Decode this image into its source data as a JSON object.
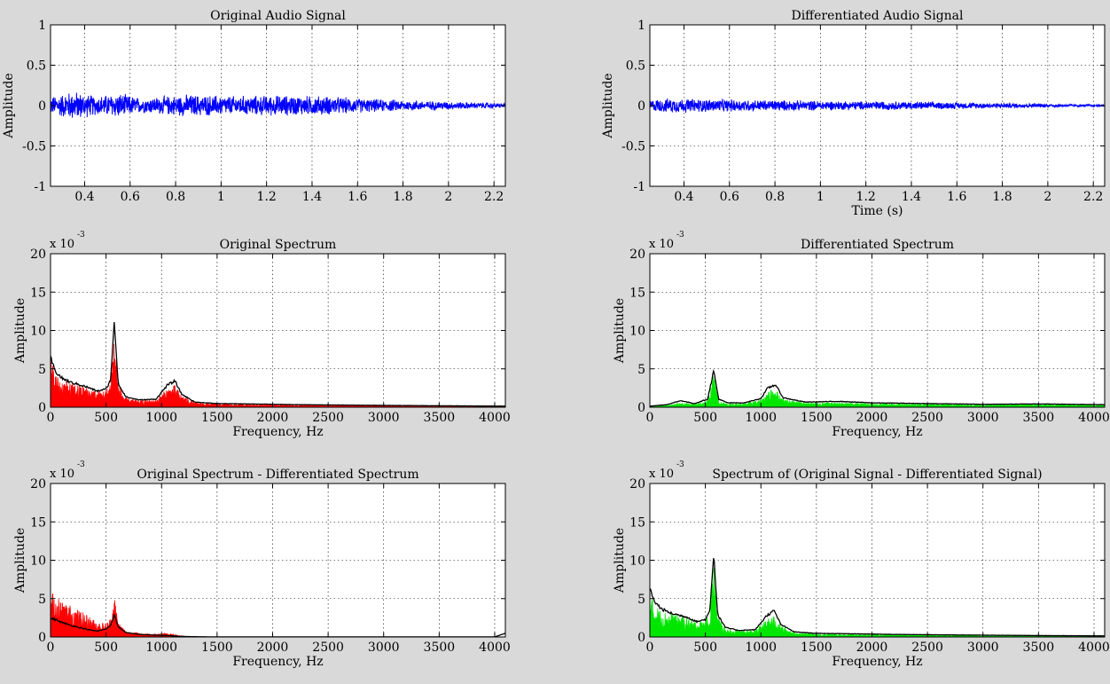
{
  "figure": {
    "background": "#d9d9d9",
    "axes_background": "#ffffff"
  },
  "chart_data": [
    {
      "id": "original-audio",
      "type": "line",
      "title": "Original Audio Signal",
      "xlabel": "",
      "ylabel": "Amplitude",
      "xlim": [
        0.25,
        2.25
      ],
      "ylim": [
        -1,
        1
      ],
      "xticks": [
        0.4,
        0.6,
        0.8,
        1,
        1.2,
        1.4,
        1.6,
        1.8,
        2,
        2.2
      ],
      "xtick_labels": [
        "0.4",
        "0.6",
        "0.8",
        "1",
        "1.2",
        "1.4",
        "1.6",
        "1.8",
        "2",
        "2.2"
      ],
      "yticks": [
        -1,
        -0.5,
        0,
        0.5,
        1
      ],
      "ytick_labels": [
        "-1",
        "-0.5",
        "0",
        "0.5",
        "1"
      ],
      "exponent_label": "",
      "grid": true,
      "series": [
        {
          "kind": "line",
          "color": "#0000ff",
          "envelope": {
            "x": [
              0.25,
              0.35,
              0.45,
              0.55,
              0.65,
              0.85,
              1.05,
              1.25,
              1.45,
              1.65,
              1.85,
              2.05,
              2.25
            ],
            "y": [
              0.12,
              0.2,
              0.13,
              0.17,
              0.1,
              0.15,
              0.13,
              0.14,
              0.13,
              0.09,
              0.07,
              0.05,
              0.03
            ]
          }
        }
      ]
    },
    {
      "id": "differentiated-audio",
      "type": "line",
      "title": "Differentiated Audio Signal",
      "xlabel": "Time (s)",
      "ylabel": "Amplitude",
      "xlim": [
        0.25,
        2.25
      ],
      "ylim": [
        -1,
        1
      ],
      "xticks": [
        0.4,
        0.6,
        0.8,
        1,
        1.2,
        1.4,
        1.6,
        1.8,
        2,
        2.2
      ],
      "xtick_labels": [
        "0.4",
        "0.6",
        "0.8",
        "1",
        "1.2",
        "1.4",
        "1.6",
        "1.8",
        "2",
        "2.2"
      ],
      "yticks": [
        -1,
        -0.5,
        0,
        0.5,
        1
      ],
      "ytick_labels": [
        "-1",
        "-0.5",
        "0",
        "0.5",
        "1"
      ],
      "exponent_label": "",
      "grid": true,
      "series": [
        {
          "kind": "line",
          "color": "#0000ff",
          "envelope": {
            "x": [
              0.25,
              0.35,
              0.5,
              0.7,
              0.9,
              1.1,
              1.3,
              1.5,
              1.7,
              1.9,
              2.1,
              2.25
            ],
            "y": [
              0.08,
              0.1,
              0.09,
              0.08,
              0.07,
              0.06,
              0.06,
              0.05,
              0.04,
              0.03,
              0.02,
              0.015
            ]
          }
        }
      ]
    },
    {
      "id": "original-spectrum",
      "type": "area",
      "title": "Original Spectrum",
      "xlabel": "Frequency, Hz",
      "ylabel": "Amplitude",
      "xlim": [
        0,
        4096
      ],
      "ylim": [
        0,
        20
      ],
      "xticks": [
        0,
        500,
        1000,
        1500,
        2000,
        2500,
        3000,
        3500,
        4000
      ],
      "xtick_labels": [
        "0",
        "500",
        "1000",
        "1500",
        "2000",
        "2500",
        "3000",
        "3500",
        "4000"
      ],
      "yticks": [
        0,
        5,
        10,
        15,
        20
      ],
      "ytick_labels": [
        "0",
        "5",
        "10",
        "15",
        "20"
      ],
      "exponent_label": "x 10",
      "exponent_power": "-3",
      "grid": true,
      "series": [
        {
          "kind": "fill",
          "color": "#ff0000",
          "x": [
            0,
            40,
            100,
            180,
            260,
            340,
            420,
            500,
            540,
            575,
            610,
            680,
            800,
            950,
            1050,
            1120,
            1180,
            1300,
            1500,
            1800,
            2200,
            2600,
            3000,
            3500,
            4096
          ],
          "y": [
            6.8,
            4.5,
            3.6,
            3.2,
            3.0,
            2.6,
            2.1,
            2.3,
            3.5,
            10.5,
            3.0,
            1.2,
            0.9,
            1.0,
            2.5,
            2.9,
            1.6,
            0.6,
            0.45,
            0.4,
            0.3,
            0.25,
            0.22,
            0.2,
            0.15
          ]
        },
        {
          "kind": "line",
          "color": "#000000",
          "x": [
            0,
            40,
            100,
            180,
            260,
            340,
            420,
            500,
            540,
            575,
            610,
            680,
            800,
            950,
            1050,
            1120,
            1180,
            1300,
            1500,
            1800,
            2200,
            2600,
            3000,
            3500,
            4096
          ],
          "y": [
            6.8,
            5.0,
            4.0,
            3.4,
            3.1,
            2.7,
            2.2,
            2.5,
            3.7,
            11.6,
            3.2,
            1.4,
            1.0,
            1.1,
            3.0,
            3.6,
            1.8,
            0.7,
            0.5,
            0.45,
            0.35,
            0.3,
            0.25,
            0.2,
            0.15
          ]
        }
      ]
    },
    {
      "id": "differentiated-spectrum",
      "type": "area",
      "title": "Differentiated Spectrum",
      "xlabel": "Frequency, Hz",
      "ylabel": "Amplitude",
      "xlim": [
        0,
        4096
      ],
      "ylim": [
        0,
        20
      ],
      "xticks": [
        0,
        500,
        1000,
        1500,
        2000,
        2500,
        3000,
        3500,
        4000
      ],
      "xtick_labels": [
        "0",
        "500",
        "1000",
        "1500",
        "2000",
        "2500",
        "3000",
        "3500",
        "4000"
      ],
      "yticks": [
        0,
        5,
        10,
        15,
        20
      ],
      "ytick_labels": [
        "0",
        "5",
        "10",
        "15",
        "20"
      ],
      "exponent_label": "x 10",
      "exponent_power": "-3",
      "grid": true,
      "series": [
        {
          "kind": "fill",
          "color": "#00e600",
          "x": [
            0,
            150,
            280,
            400,
            520,
            575,
            620,
            700,
            850,
            1000,
            1060,
            1130,
            1200,
            1400,
            1700,
            2000,
            2500,
            3000,
            3500,
            4096
          ],
          "y": [
            0.1,
            0.25,
            0.6,
            0.4,
            0.9,
            4.3,
            0.9,
            0.5,
            0.5,
            1.0,
            2.1,
            2.5,
            1.1,
            0.6,
            0.6,
            0.5,
            0.45,
            0.35,
            0.4,
            0.3
          ]
        },
        {
          "kind": "line",
          "color": "#000000",
          "x": [
            0,
            150,
            280,
            400,
            520,
            575,
            620,
            700,
            850,
            1000,
            1060,
            1130,
            1200,
            1400,
            1700,
            2000,
            2500,
            3000,
            3500,
            4096
          ],
          "y": [
            0.15,
            0.35,
            0.9,
            0.5,
            1.1,
            5.0,
            1.1,
            0.6,
            0.6,
            1.2,
            2.6,
            3.1,
            1.3,
            0.7,
            0.8,
            0.6,
            0.5,
            0.4,
            0.45,
            0.35
          ]
        }
      ]
    },
    {
      "id": "spectrum-difference",
      "type": "area",
      "title": "Original Spectrum - Differentiated Spectrum",
      "xlabel": "Frequency, Hz",
      "ylabel": "Amplitude",
      "xlim": [
        0,
        4096
      ],
      "ylim": [
        0,
        20
      ],
      "xticks": [
        0,
        500,
        1000,
        1500,
        2000,
        2500,
        3000,
        3500,
        4000
      ],
      "xtick_labels": [
        "0",
        "500",
        "1000",
        "1500",
        "2000",
        "2500",
        "3000",
        "3500",
        "4000"
      ],
      "yticks": [
        0,
        5,
        10,
        15,
        20
      ],
      "ytick_labels": [
        "0",
        "5",
        "10",
        "15",
        "20"
      ],
      "exponent_label": "x 10",
      "exponent_power": "-3",
      "grid": true,
      "series": [
        {
          "kind": "fill",
          "color": "#ff0000",
          "x": [
            0,
            40,
            100,
            180,
            260,
            340,
            420,
            500,
            540,
            575,
            610,
            680,
            800,
            950,
            1050,
            1150,
            1250,
            1400,
            1700,
            2000,
            3000,
            4096
          ],
          "y": [
            6.3,
            5.5,
            4.8,
            4.2,
            3.5,
            2.8,
            2.0,
            1.8,
            2.5,
            5.6,
            2.0,
            0.8,
            0.5,
            0.4,
            0.5,
            0.2,
            0.05,
            0.02,
            0.02,
            0.01,
            0.01,
            0.01
          ]
        },
        {
          "kind": "line",
          "color": "#000000",
          "x": [
            0,
            40,
            100,
            180,
            260,
            340,
            420,
            500,
            540,
            575,
            610,
            680,
            800,
            950,
            1050,
            1150,
            1250,
            1400,
            1700,
            2000,
            3000,
            4000,
            4096
          ],
          "y": [
            2.6,
            2.4,
            2.0,
            1.6,
            1.3,
            1.0,
            0.8,
            1.1,
            1.6,
            3.0,
            1.4,
            0.6,
            0.35,
            0.25,
            0.2,
            0.1,
            0.05,
            0.02,
            0.01,
            0.01,
            0.01,
            0.01,
            0.5
          ]
        }
      ]
    },
    {
      "id": "spectrum-of-difference",
      "type": "area",
      "title": "Spectrum of (Original Signal - Differentiated Signal)",
      "xlabel": "Frequency, Hz",
      "ylabel": "Amplitude",
      "xlim": [
        0,
        4096
      ],
      "ylim": [
        0,
        20
      ],
      "xticks": [
        0,
        500,
        1000,
        1500,
        2000,
        2500,
        3000,
        3500,
        4000
      ],
      "xtick_labels": [
        "0",
        "500",
        "1000",
        "1500",
        "2000",
        "2500",
        "3000",
        "3500",
        "4000"
      ],
      "yticks": [
        0,
        5,
        10,
        15,
        20
      ],
      "ytick_labels": [
        "0",
        "5",
        "10",
        "15",
        "20"
      ],
      "exponent_label": "x 10",
      "exponent_power": "-3",
      "grid": true,
      "series": [
        {
          "kind": "fill",
          "color": "#00e600",
          "x": [
            0,
            40,
            100,
            180,
            260,
            340,
            420,
            500,
            540,
            575,
            610,
            680,
            800,
            950,
            1050,
            1120,
            1180,
            1300,
            1500,
            1800,
            2200,
            2600,
            3000,
            3500,
            4096
          ],
          "y": [
            6.2,
            4.3,
            3.5,
            3.1,
            2.9,
            2.5,
            2.0,
            2.2,
            3.3,
            10.4,
            2.9,
            1.1,
            0.8,
            0.9,
            2.3,
            2.8,
            1.5,
            0.6,
            0.4,
            0.35,
            0.3,
            0.25,
            0.2,
            0.18,
            0.15
          ]
        },
        {
          "kind": "line",
          "color": "#000000",
          "x": [
            0,
            40,
            100,
            180,
            260,
            340,
            420,
            500,
            540,
            575,
            610,
            680,
            800,
            950,
            1050,
            1120,
            1180,
            1300,
            1500,
            1800,
            2200,
            2600,
            3000,
            3500,
            4096
          ],
          "y": [
            6.6,
            4.9,
            3.9,
            3.3,
            3.0,
            2.7,
            2.1,
            2.4,
            3.6,
            11.6,
            3.1,
            1.3,
            0.9,
            1.0,
            2.9,
            3.6,
            1.7,
            0.7,
            0.5,
            0.45,
            0.35,
            0.3,
            0.25,
            0.2,
            0.15
          ]
        }
      ]
    }
  ]
}
